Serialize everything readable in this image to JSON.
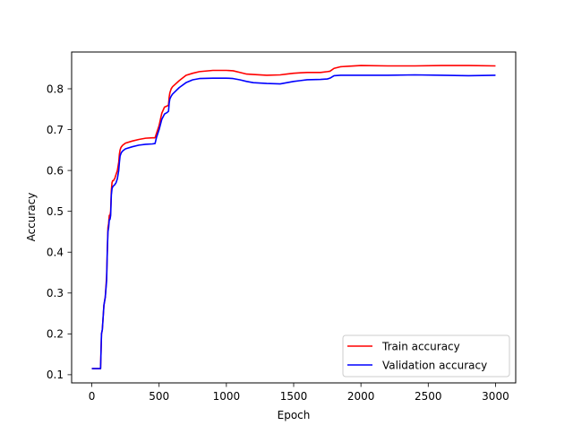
{
  "chart_data": {
    "type": "line",
    "title": "",
    "xlabel": "Epoch",
    "ylabel": "Accuracy",
    "xlim": [
      -150,
      3150
    ],
    "ylim": [
      0.08,
      0.89
    ],
    "xticks": [
      0,
      500,
      1000,
      1500,
      2000,
      2500,
      3000
    ],
    "yticks": [
      0.1,
      0.2,
      0.3,
      0.4,
      0.5,
      0.6,
      0.7,
      0.8
    ],
    "grid": false,
    "legend_position": "lower-right",
    "series": [
      {
        "name": "Train accuracy",
        "color": "#ff0000",
        "x": [
          0,
          40,
          65,
          72,
          78,
          90,
          100,
          110,
          115,
          120,
          125,
          130,
          135,
          140,
          145,
          150,
          155,
          160,
          170,
          180,
          190,
          200,
          205,
          210,
          215,
          220,
          230,
          250,
          300,
          350,
          400,
          450,
          470,
          480,
          500,
          520,
          540,
          560,
          570,
          575,
          580,
          590,
          600,
          650,
          700,
          750,
          800,
          900,
          1000,
          1050,
          1100,
          1150,
          1200,
          1300,
          1400,
          1450,
          1500,
          1550,
          1600,
          1700,
          1750,
          1770,
          1800,
          1850,
          1900,
          2000,
          2200,
          2400,
          2600,
          2800,
          3000
        ],
        "y": [
          0.115,
          0.115,
          0.115,
          0.2,
          0.21,
          0.27,
          0.29,
          0.34,
          0.4,
          0.46,
          0.47,
          0.49,
          0.49,
          0.5,
          0.55,
          0.57,
          0.575,
          0.575,
          0.58,
          0.59,
          0.6,
          0.62,
          0.64,
          0.65,
          0.655,
          0.658,
          0.662,
          0.667,
          0.672,
          0.676,
          0.679,
          0.68,
          0.68,
          0.69,
          0.71,
          0.74,
          0.755,
          0.758,
          0.76,
          0.78,
          0.79,
          0.8,
          0.805,
          0.82,
          0.833,
          0.838,
          0.842,
          0.845,
          0.845,
          0.844,
          0.84,
          0.836,
          0.835,
          0.833,
          0.834,
          0.836,
          0.838,
          0.839,
          0.84,
          0.84,
          0.842,
          0.843,
          0.85,
          0.854,
          0.855,
          0.857,
          0.856,
          0.856,
          0.857,
          0.857,
          0.856
        ]
      },
      {
        "name": "Validation accuracy",
        "color": "#0000ff",
        "x": [
          0,
          40,
          65,
          72,
          78,
          90,
          100,
          110,
          115,
          120,
          125,
          130,
          135,
          140,
          145,
          150,
          155,
          160,
          170,
          180,
          190,
          200,
          205,
          210,
          215,
          220,
          230,
          250,
          300,
          350,
          400,
          450,
          470,
          480,
          500,
          520,
          540,
          560,
          570,
          575,
          580,
          590,
          600,
          650,
          700,
          750,
          800,
          900,
          1000,
          1050,
          1100,
          1150,
          1200,
          1300,
          1400,
          1450,
          1500,
          1550,
          1600,
          1700,
          1750,
          1770,
          1800,
          1850,
          1900,
          2000,
          2200,
          2400,
          2600,
          2800,
          3000
        ],
        "y": [
          0.115,
          0.115,
          0.115,
          0.2,
          0.21,
          0.27,
          0.29,
          0.33,
          0.4,
          0.45,
          0.46,
          0.48,
          0.48,
          0.49,
          0.54,
          0.555,
          0.56,
          0.562,
          0.565,
          0.57,
          0.58,
          0.6,
          0.62,
          0.635,
          0.64,
          0.644,
          0.648,
          0.653,
          0.658,
          0.662,
          0.664,
          0.665,
          0.666,
          0.68,
          0.7,
          0.725,
          0.738,
          0.742,
          0.745,
          0.765,
          0.775,
          0.782,
          0.787,
          0.803,
          0.815,
          0.822,
          0.825,
          0.826,
          0.826,
          0.825,
          0.822,
          0.818,
          0.815,
          0.813,
          0.812,
          0.815,
          0.818,
          0.82,
          0.822,
          0.823,
          0.824,
          0.826,
          0.832,
          0.833,
          0.833,
          0.833,
          0.833,
          0.834,
          0.833,
          0.832,
          0.833
        ]
      }
    ]
  }
}
